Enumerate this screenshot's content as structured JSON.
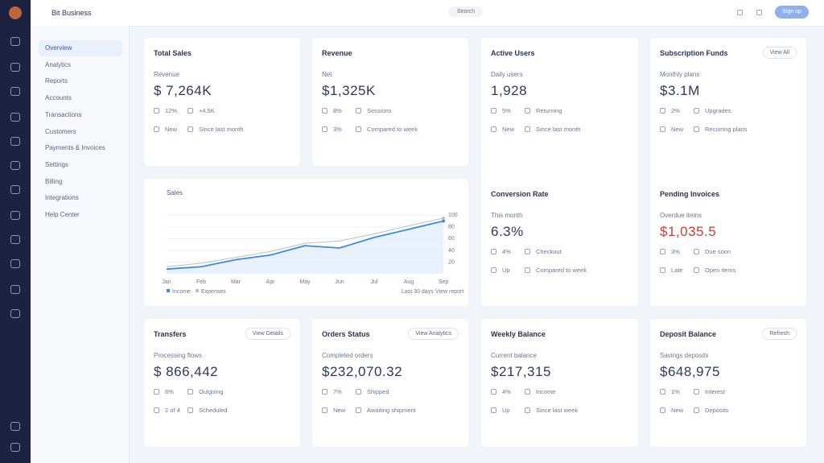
{
  "header": {
    "title": "Bit Business",
    "search": "Search",
    "button": "Sign up"
  },
  "nav": [
    "Overview",
    "Analytics",
    "Reports",
    "Accounts",
    "Transactions",
    "Customers",
    "Payments & Invoices",
    "Settings",
    "Billing",
    "Integrations",
    "Help Center"
  ],
  "cards": [
    {
      "title": "Total Sales",
      "sub": "Revenue",
      "value": "$ 7,264K",
      "rows": [
        [
          "12%",
          "+4.5K"
        ],
        [
          "New",
          "Since last month"
        ]
      ]
    },
    {
      "title": "Revenue",
      "sub": "Net",
      "value": "$1,325K",
      "rows": [
        [
          "8%",
          "Sessions"
        ],
        [
          "3%",
          "Compared to week"
        ]
      ]
    },
    {
      "title": "Active Users",
      "sub": "Daily users",
      "value": "1,928",
      "rows": [
        [
          "5%",
          "Returning"
        ],
        [
          "New",
          "Since last month"
        ]
      ]
    },
    {
      "title": "Subscription Funds",
      "badge": "View All",
      "sub": "Monthly plans",
      "value": "$3.1M",
      "rows": [
        [
          "2%",
          "Upgrades"
        ],
        [
          "New",
          "Recurring plans"
        ]
      ]
    },
    {
      "title": "Conversion Rate",
      "sub": "This month",
      "value": "6.3%",
      "rows": [
        [
          "4%",
          "Checkout"
        ],
        [
          "Up",
          "Compared to week"
        ]
      ]
    },
    {
      "title": "Pending Invoices",
      "sub": "Overdue items",
      "value": "$1,035.5",
      "rows": [
        [
          "3%",
          "Due soon"
        ],
        [
          "Late",
          "Open items"
        ]
      ]
    },
    {
      "title": "Transfers",
      "badge": "View Details",
      "sub": "Processing flows",
      "value": "$ 866,442",
      "rows": [
        [
          "6%",
          "Outgoing"
        ],
        [
          "2 of 4",
          "Scheduled"
        ]
      ]
    },
    {
      "title": "Orders Status",
      "badge": "View Analytics",
      "sub": "Completed orders",
      "value": "$232,070.32",
      "rows": [
        [
          "7%",
          "Shipped"
        ],
        [
          "New",
          "Awaiting shipment"
        ]
      ]
    },
    {
      "title": "Weekly Balance",
      "sub": "Current balance",
      "value": "$217,315",
      "rows": [
        [
          "4%",
          "Income"
        ],
        [
          "Up",
          "Since last week"
        ]
      ]
    },
    {
      "title": "Deposit Balance",
      "badge": "Refresh",
      "sub": "Savings deposits",
      "value": "$648,975",
      "rows": [
        [
          "1%",
          "Interest"
        ],
        [
          "New",
          "Deposits"
        ]
      ]
    }
  ],
  "chart_data": {
    "type": "line",
    "title": "Sales",
    "categories": [
      "Jan",
      "Feb",
      "Mar",
      "Apr",
      "May",
      "Jun",
      "Jul",
      "Aug",
      "Sep"
    ],
    "series": [
      {
        "name": "Income",
        "color": "#3d8be0",
        "values": [
          8,
          12,
          24,
          32,
          48,
          44,
          62,
          76,
          90
        ]
      },
      {
        "name": "Expenses",
        "color": "#b8bfcd",
        "values": [
          12,
          18,
          28,
          38,
          52,
          56,
          68,
          82,
          95
        ]
      }
    ],
    "ylim": [
      0,
      110
    ],
    "yticks": [
      20,
      40,
      60,
      80,
      100
    ],
    "grid": true,
    "footer": [
      "Last 30 days",
      "View report"
    ]
  }
}
